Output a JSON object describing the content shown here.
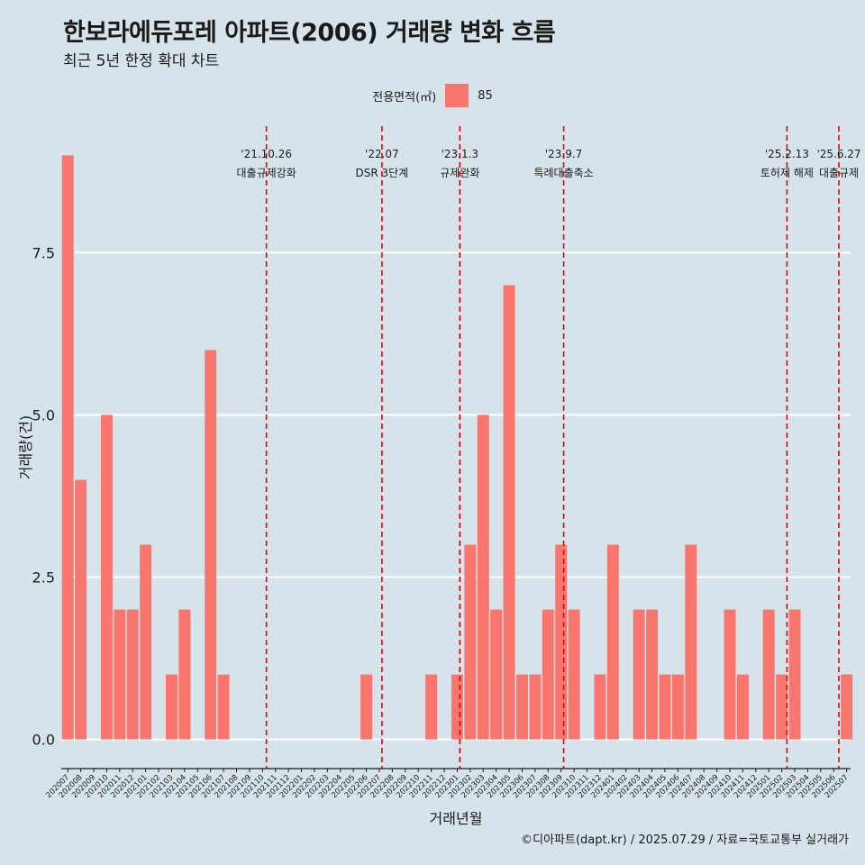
{
  "title": "한보라에듀포레 아파트(2006) 거래량 변화 흐름",
  "subtitle": "최근 5년 한정 확대 차트",
  "caption": "©디아파트(dapt.kr) / 2025.07.29 / 자료=국토교통부 실거래가",
  "legend": {
    "title": "전용면적(㎡)",
    "entries": [
      {
        "label": "85",
        "color": "#f8766d"
      }
    ]
  },
  "chart_data": {
    "type": "bar",
    "xlabel": "거래년월",
    "ylabel": "거래량(건)",
    "ylim": [
      -0.45,
      9.45
    ],
    "yticks": [
      0.0,
      2.5,
      5.0,
      7.5
    ],
    "ytick_labels": [
      "0.0",
      "2.5",
      "5.0",
      "7.5"
    ],
    "grid": true,
    "legend_position": "top",
    "bar_color": "#f8766d",
    "categories": [
      "202007",
      "202008",
      "202009",
      "202010",
      "202011",
      "202012",
      "202101",
      "202102",
      "202103",
      "202104",
      "202105",
      "202106",
      "202107",
      "202108",
      "202109",
      "202110",
      "202111",
      "202112",
      "202201",
      "202202",
      "202203",
      "202204",
      "202205",
      "202206",
      "202207",
      "202208",
      "202209",
      "202210",
      "202211",
      "202212",
      "202301",
      "202302",
      "202303",
      "202304",
      "202305",
      "202306",
      "202307",
      "202308",
      "202309",
      "202310",
      "202311",
      "202312",
      "202401",
      "202402",
      "202403",
      "202404",
      "202405",
      "202406",
      "202407",
      "202408",
      "202409",
      "202410",
      "202411",
      "202412",
      "202501",
      "202502",
      "202503",
      "202504",
      "202505",
      "202506",
      "202507"
    ],
    "values": [
      9,
      4,
      0,
      5,
      2,
      2,
      3,
      0,
      1,
      2,
      0,
      6,
      1,
      0,
      0,
      0,
      0,
      0,
      0,
      0,
      0,
      0,
      0,
      1,
      0,
      0,
      0,
      0,
      1,
      0,
      1,
      3,
      5,
      2,
      7,
      1,
      1,
      2,
      3,
      2,
      0,
      1,
      3,
      0,
      2,
      2,
      1,
      1,
      3,
      0,
      0,
      2,
      1,
      0,
      2,
      1,
      2,
      0,
      0,
      0,
      1
    ],
    "event_color": "#e8000b",
    "events": [
      {
        "date": "'21.10.26",
        "label": "대출규제강화",
        "month_index": 15.3
      },
      {
        "date": "'22.07",
        "label": "DSR 3단계",
        "month_index": 24.2
      },
      {
        "date": "'23.1.3",
        "label": "규제완화",
        "month_index": 30.2
      },
      {
        "date": "'23.9.7",
        "label": "특례대출축소",
        "month_index": 38.2
      },
      {
        "date": "'25.2.13",
        "label": "토허제 해제",
        "month_index": 55.4
      },
      {
        "date": "'25.6.27",
        "label": "대출규제",
        "month_index": 59.4
      }
    ]
  }
}
